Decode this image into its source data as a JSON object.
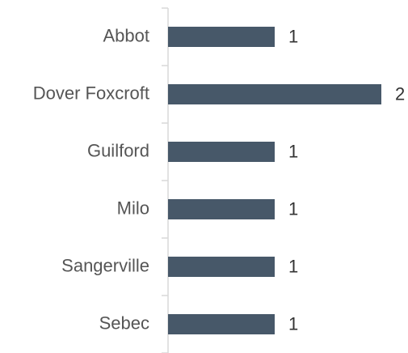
{
  "chart_data": {
    "type": "bar",
    "orientation": "horizontal",
    "categories": [
      "Abbot",
      "Dover Foxcroft",
      "Guilford",
      "Milo",
      "Sangerville",
      "Sebec"
    ],
    "values": [
      1,
      2,
      1,
      1,
      1,
      1
    ],
    "color": "#475869",
    "data_labels": true
  }
}
